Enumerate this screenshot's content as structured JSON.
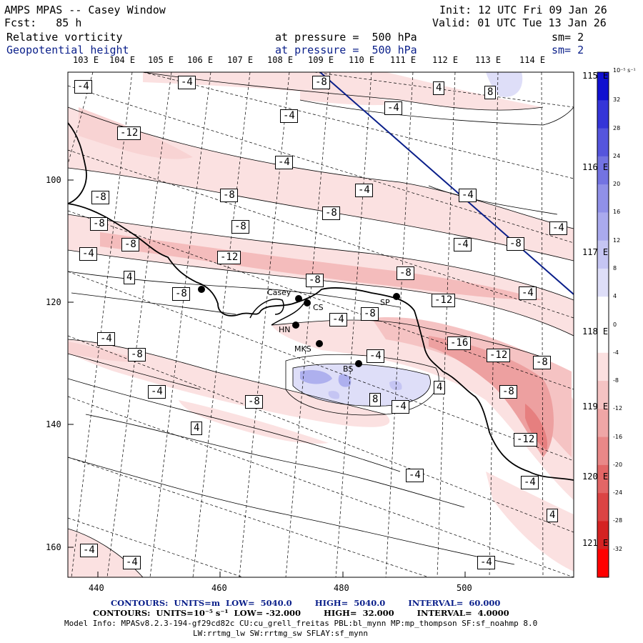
{
  "header": {
    "line1_left": "AMPS MPAS -- Casey Window",
    "line2_left": "Fcst:   85 h",
    "line1_right": "Init: 12 UTC Fri 09 Jan 26",
    "line2_right": "Valid: 01 UTC Tue 13 Jan 26",
    "field1_name": "Relative vorticity",
    "field1_level": "at pressure =  500 hPa",
    "field1_sm": "sm= 2",
    "field2_name": "Geopotential height",
    "field2_level": "at pressure =  500 hPa",
    "field2_sm": "sm= 2"
  },
  "map": {
    "top_longitude_labels": [
      "103 E",
      "104 E",
      "105 E",
      "106 E",
      "107 E",
      "108 E",
      "109 E",
      "110 E",
      "111 E",
      "112 E",
      "113 E",
      "114 E"
    ],
    "right_longitude_labels": [
      "115 E",
      "116 E",
      "117 E",
      "118 E",
      "119 E",
      "120 E",
      "121 E"
    ],
    "x_ticks": [
      440,
      460,
      480,
      500
    ],
    "y_ticks": [
      100,
      120,
      140,
      160
    ],
    "stations": [
      "Casey",
      "CS",
      "SP",
      "HN",
      "MKS",
      "BS"
    ],
    "contour_labels": [
      "-4",
      "-8",
      "-12",
      "-16",
      "4",
      "8"
    ]
  },
  "colorbar": {
    "unit": "10⁻⁵ s⁻¹",
    "levels": [
      "32",
      "28",
      "24",
      "20",
      "16",
      "12",
      "8",
      "4",
      "0",
      "-4",
      "-8",
      "-12",
      "-16",
      "-20",
      "-24",
      "-28",
      "-32"
    ],
    "colors": [
      "#1010d0",
      "#3535d8",
      "#5555dd",
      "#7373e2",
      "#9090e8",
      "#aaaaee",
      "#c5c5f3",
      "#dedef8",
      "#ffffff",
      "#ffffff",
      "#fbe0e0",
      "#f5c3c3",
      "#efa6a6",
      "#e98888",
      "#e26666",
      "#db4444",
      "#d42222",
      "#ff0000"
    ]
  },
  "footer": {
    "contours1": "CONTOURS:  UNITS=m  LOW=  5040.0        HIGH=  5040.0        INTERVAL=  60.000",
    "contours2": "CONTOURS:  UNITS=10⁻⁵ s⁻¹  LOW= -32.000        HIGH=  32.000        INTERVAL=  4.0000",
    "model_info": "Model Info: MPASv8.2.3-194-gf29cd82c CU:cu_grell_freitas PBL:bl_mynn MP:mp_thompson SF:sf_noahmp 8.0",
    "model_info2": "LW:rrtmg_lw SW:rrtmg_sw SFLAY:sf_mynn"
  }
}
